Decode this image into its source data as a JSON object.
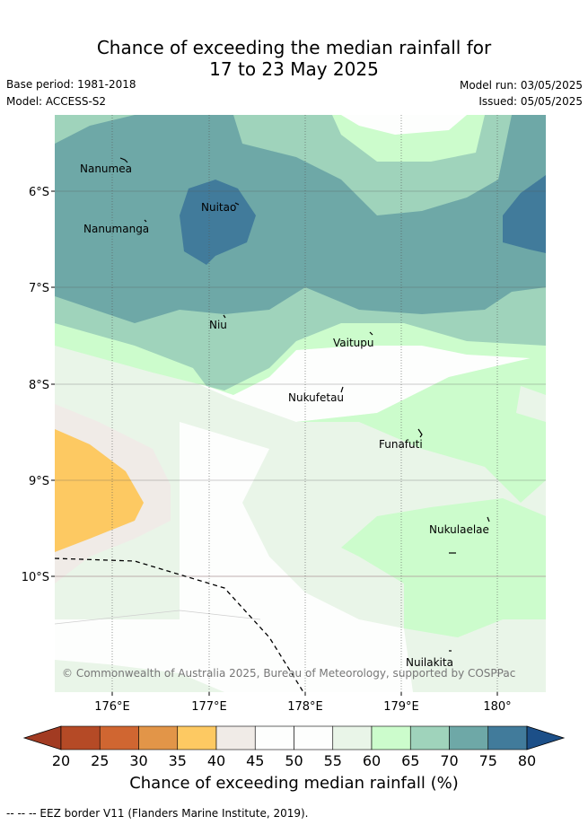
{
  "title_line1": "Chance of exceeding the median rainfall for",
  "title_line2": "17 to 23 May 2025",
  "base_period": "Base period: 1981-2018",
  "model": "Model: ACCESS-S2",
  "model_run": "Model run: 03/05/2025",
  "issued": "Issued: 05/05/2025",
  "copyright": "© Commonwealth of Australia 2025, Bureau of Meteorology, supported by COSPPac",
  "x_ticks": [
    "176°E",
    "177°E",
    "178°E",
    "179°E",
    "180°"
  ],
  "y_ticks": [
    "6°S",
    "7°S",
    "8°S",
    "9°S",
    "10°S"
  ],
  "islands": [
    "Nanumea",
    "Nanumanga",
    "Nuitao",
    "Niu",
    "Vaitupu",
    "Nukufetau",
    "Funafuti",
    "Nukulaelae",
    "Nuilakita"
  ],
  "colorbar": {
    "ticks": [
      "20",
      "25",
      "30",
      "35",
      "40",
      "45",
      "50",
      "55",
      "60",
      "65",
      "70",
      "75",
      "80"
    ],
    "colors": [
      "#a23b22",
      "#b54a26",
      "#d06631",
      "#e29548",
      "#fdc962",
      "#f0ebe7",
      "#fdfefd",
      "#fdfefd",
      "#e9f5e8",
      "#ccfccc",
      "#9fd3bb",
      "#6ea8a7",
      "#417b9b",
      "#1c4f88"
    ],
    "label": "Chance of exceeding median rainfall (%)"
  },
  "legend_note": "--  --  -- EEZ border V11 (Flanders Marine Institute, 2019)."
}
